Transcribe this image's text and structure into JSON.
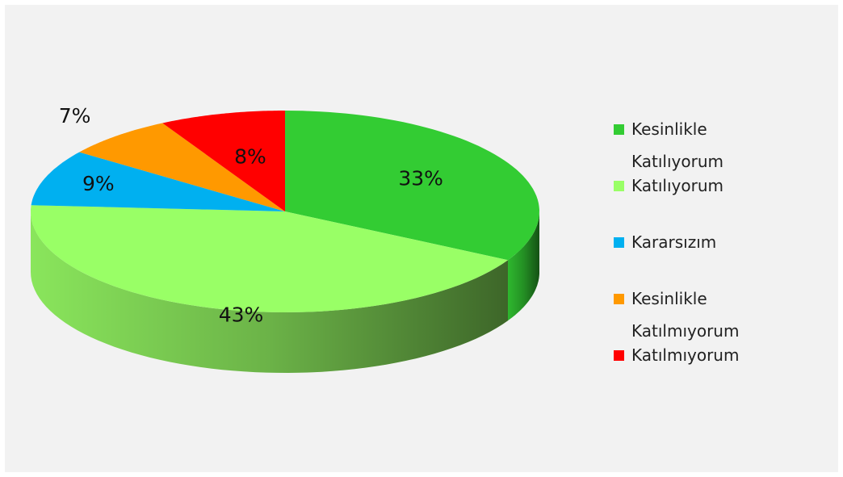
{
  "chart_data": {
    "type": "pie",
    "categories": [
      "Kesinlikle Katılıyorum",
      "Katılıyorum",
      "Kararsızım",
      "Kesinlikle Katılmıyorum",
      "Katılmıyorum"
    ],
    "values": [
      33,
      43,
      9,
      7,
      8
    ],
    "value_labels": [
      "33%",
      "43%",
      "9%",
      "7%",
      "8%"
    ],
    "colors": [
      "#33cc33",
      "#99ff66",
      "#00b0f0",
      "#ff9900",
      "#ff0000"
    ],
    "legend": "right",
    "three_d": true
  }
}
